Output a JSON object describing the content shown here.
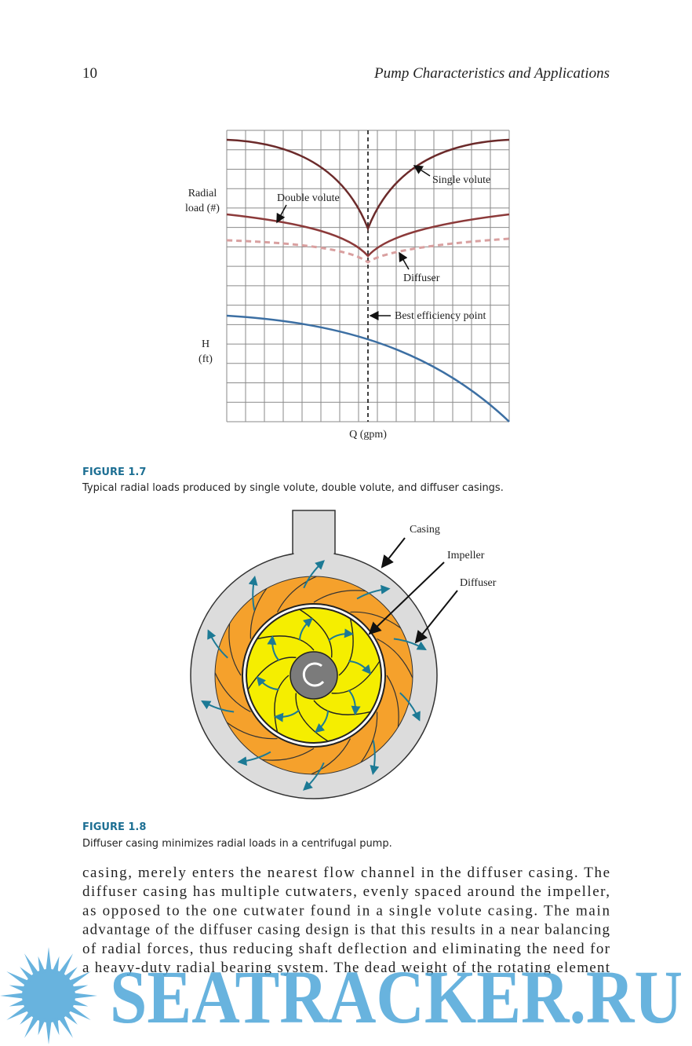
{
  "header": {
    "page_number": "10",
    "running_title": "Pump Characteristics and Applications"
  },
  "figures": [
    {
      "labels": {
        "radial_1": "Radial",
        "radial_2": "load (#)",
        "single_volute": "Single volute",
        "double_volute": "Double volute",
        "diffuser": "Diffuser",
        "bep": "Best efficiency point",
        "h_1": "H",
        "h_2": "(ft)",
        "q": "Q (gpm)"
      },
      "caption_label": "FIGURE 1.7",
      "caption": "Typical radial loads produced by single volute, double volute, and diffuser casings."
    },
    {
      "labels": {
        "casing": "Casing",
        "impeller": "Impeller",
        "diffuser": "Diffuser"
      },
      "caption_label": "FIGURE 1.8",
      "caption": "Diffuser casing minimizes radial loads in a centrifugal pump."
    }
  ],
  "body": {
    "lines": [
      "casing, merely enters the nearest flow channel in the diffuser casing. The",
      "diffuser casing has multiple cutwaters, evenly spaced around the impeller,",
      "as opposed to the one cutwater found in a single volute casing. The main",
      "advantage of the diffuser casing design is that this results in a near balancing",
      "of radial forces, thus reducing shaft deflection and eliminating the need for",
      "a heavy-duty radial bearing system. The dead weight of the rotating element"
    ]
  },
  "watermark": "SEATRACKER.RU"
}
